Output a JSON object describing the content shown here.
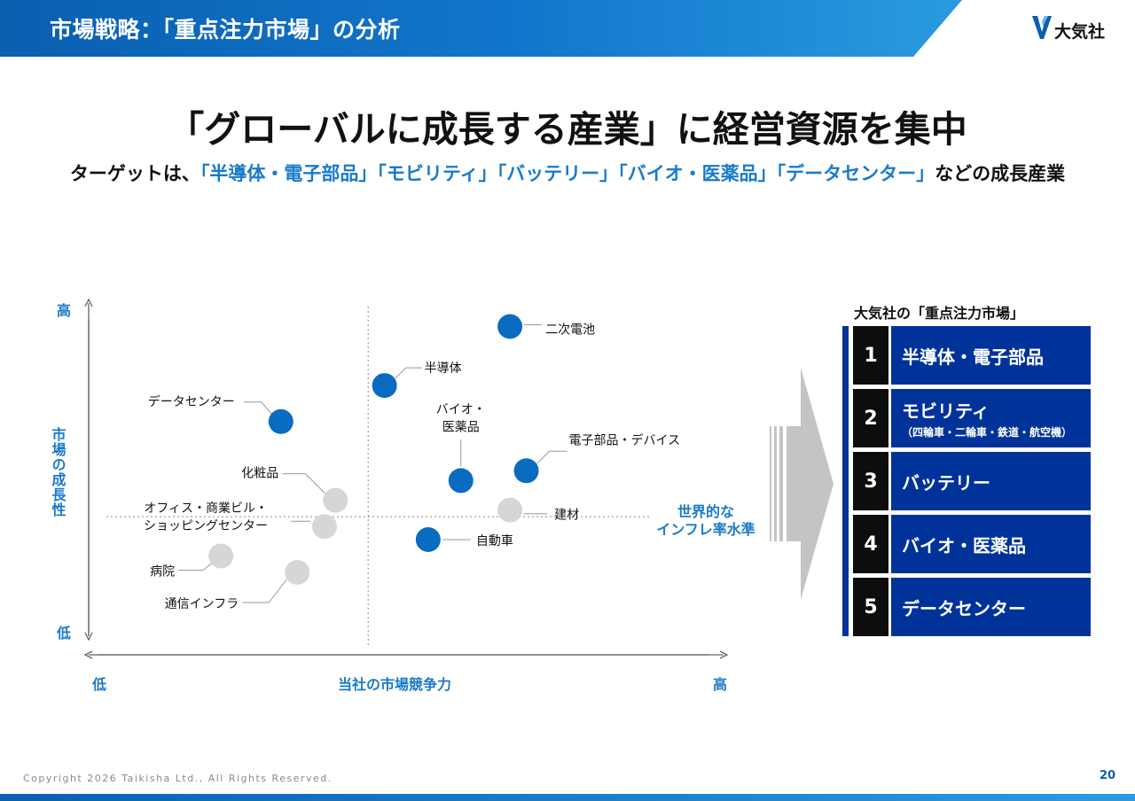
{
  "header": {
    "title": "市場戦略：「重点注力市場」の分析"
  },
  "logo": {
    "text": "大気社",
    "color": "#0a5fb0"
  },
  "headline": {
    "title": "「グローバルに成長する産業」に経営資源を集中",
    "subtitle_prefix": "ターゲットは、",
    "subtitle_highlight": "「半導体・電子部品」「モビリティ」「バッテリー」「バイオ・医薬品」「データセンター」",
    "subtitle_suffix": "などの成長産業"
  },
  "chart_data": {
    "type": "scatter",
    "title": "",
    "xlabel": "当社の市場競争力",
    "ylabel": "市場の成長性",
    "x_low_label": "低",
    "x_high_label": "高",
    "y_low_label": "低",
    "y_high_label": "高",
    "xlim": [
      0,
      100
    ],
    "ylim": [
      0,
      100
    ],
    "x_divider": 48,
    "y_divider": 37,
    "reference_line_label": [
      "世界的な",
      "インフレ率水準"
    ],
    "colors": {
      "focus": "#0a6cc0",
      "other": "#d6d6d6",
      "axis_label": "#1a7ac8",
      "guide": "#999999"
    },
    "points": [
      {
        "name": "二次電池",
        "x": 74,
        "y": 95,
        "focus": true
      },
      {
        "name": "半導体",
        "x": 51,
        "y": 77,
        "focus": true
      },
      {
        "name": "データセンター",
        "x": 32,
        "y": 66,
        "focus": true
      },
      {
        "name": "バイオ・医薬品",
        "x": 65,
        "y": 48,
        "focus": true
      },
      {
        "name": "電子部品・デバイス",
        "x": 77,
        "y": 51,
        "focus": true
      },
      {
        "name": "化粧品",
        "x": 42,
        "y": 42,
        "focus": false
      },
      {
        "name": "建材",
        "x": 74,
        "y": 39,
        "focus": false
      },
      {
        "name": "オフィス・商業ビル・ショッピングセンター",
        "x": 40,
        "y": 34,
        "focus": false
      },
      {
        "name": "自動車",
        "x": 59,
        "y": 30,
        "focus": true
      },
      {
        "name": "病院",
        "x": 21,
        "y": 25,
        "focus": false
      },
      {
        "name": "通信インフラ",
        "x": 35,
        "y": 20,
        "focus": false
      }
    ]
  },
  "focus_markets": {
    "title": "大気社の「重点注力市場」",
    "items": [
      {
        "num": "1",
        "name": "半導体・電子部品",
        "note": ""
      },
      {
        "num": "2",
        "name": "モビリティ",
        "note": "（四輪車・二輪車・鉄道・航空機）"
      },
      {
        "num": "3",
        "name": "バッテリー",
        "note": ""
      },
      {
        "num": "4",
        "name": "バイオ・医薬品",
        "note": ""
      },
      {
        "num": "5",
        "name": "データセンター",
        "note": ""
      }
    ]
  },
  "footer": {
    "copyright": "Copyright  2026 Taikisha Ltd., All Rights Reserved.",
    "page": "20"
  }
}
